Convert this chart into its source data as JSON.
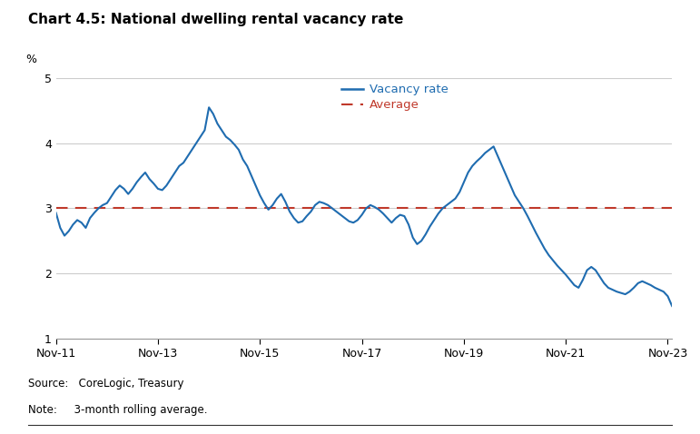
{
  "title": "Chart 4.5: National dwelling rental vacancy rate",
  "ylabel": "%",
  "average_value": 3.0,
  "ylim": [
    1,
    5
  ],
  "yticks": [
    1,
    2,
    3,
    4,
    5
  ],
  "source": "Source:   CoreLogic, Treasury",
  "note": "Note:     3-month rolling average.",
  "line_color": "#1f6cb0",
  "average_color": "#c0392b",
  "background_color": "#ffffff",
  "grid_color": "#cccccc",
  "xtick_labels": [
    "Nov-11",
    "Nov-13",
    "Nov-15",
    "Nov-17",
    "Nov-19",
    "Nov-21",
    "Nov-23"
  ],
  "xtick_positions": [
    0,
    24,
    48,
    72,
    96,
    120,
    144
  ],
  "vacancy_data": [
    2.93,
    2.7,
    2.58,
    2.65,
    2.75,
    2.82,
    2.78,
    2.7,
    2.85,
    2.93,
    3.0,
    3.05,
    3.08,
    3.18,
    3.28,
    3.35,
    3.3,
    3.22,
    3.3,
    3.4,
    3.48,
    3.55,
    3.45,
    3.38,
    3.3,
    3.28,
    3.35,
    3.45,
    3.55,
    3.65,
    3.7,
    3.8,
    3.9,
    4.0,
    4.1,
    4.2,
    4.55,
    4.45,
    4.3,
    4.2,
    4.1,
    4.05,
    3.98,
    3.9,
    3.75,
    3.65,
    3.5,
    3.35,
    3.2,
    3.08,
    2.98,
    3.05,
    3.15,
    3.22,
    3.1,
    2.95,
    2.85,
    2.78,
    2.8,
    2.88,
    2.95,
    3.05,
    3.1,
    3.08,
    3.05,
    3.0,
    2.95,
    2.9,
    2.85,
    2.8,
    2.78,
    2.82,
    2.9,
    3.0,
    3.05,
    3.02,
    2.98,
    2.92,
    2.85,
    2.78,
    2.85,
    2.9,
    2.88,
    2.75,
    2.55,
    2.45,
    2.5,
    2.6,
    2.72,
    2.82,
    2.92,
    3.0,
    3.05,
    3.1,
    3.15,
    3.25,
    3.4,
    3.55,
    3.65,
    3.72,
    3.78,
    3.85,
    3.9,
    3.95,
    3.8,
    3.65,
    3.5,
    3.35,
    3.2,
    3.1,
    3.0,
    2.88,
    2.75,
    2.62,
    2.5,
    2.38,
    2.28,
    2.2,
    2.12,
    2.05,
    1.98,
    1.9,
    1.82,
    1.78,
    1.9,
    2.05,
    2.1,
    2.05,
    1.95,
    1.85,
    1.78,
    1.75,
    1.72,
    1.7,
    1.68,
    1.72,
    1.78,
    1.85,
    1.88,
    1.85,
    1.82,
    1.78,
    1.75,
    1.72,
    1.65,
    1.5
  ]
}
